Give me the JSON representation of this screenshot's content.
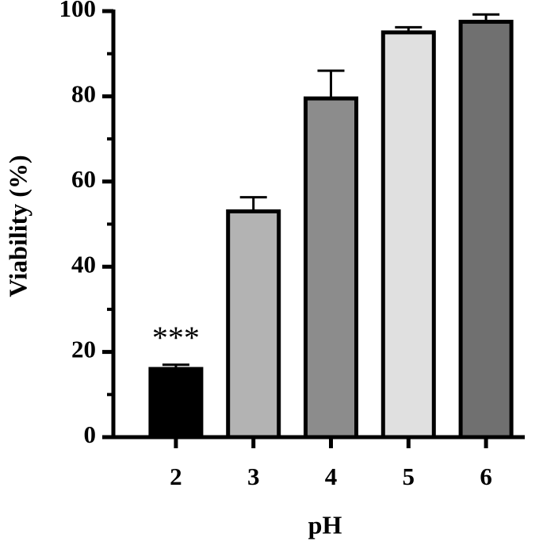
{
  "chart_data": {
    "type": "bar",
    "categories": [
      "2",
      "3",
      "4",
      "5",
      "6"
    ],
    "series": [
      {
        "colors": [
          "#000000",
          "#b3b3b3",
          "#8c8c8c",
          "#e0e0e0",
          "#707070"
        ],
        "values": [
          16,
          53,
          79.5,
          95,
          97.5
        ],
        "errors": [
          1,
          3.3,
          6.5,
          1.2,
          1.7
        ]
      }
    ],
    "ylim": [
      0,
      100
    ],
    "yticks": [
      0,
      20,
      40,
      60,
      80,
      100
    ],
    "minor_yticks": [
      10,
      30,
      50,
      70,
      90
    ],
    "ylabel": "Viability (%)",
    "xlabel": "pH",
    "annotations": [
      {
        "text": "***",
        "category": "2"
      }
    ]
  }
}
